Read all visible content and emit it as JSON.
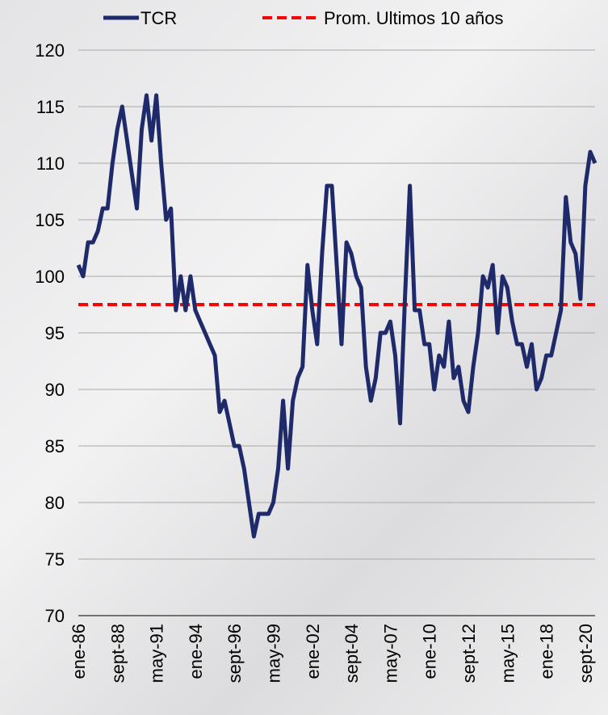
{
  "chart_data": {
    "type": "line",
    "categories": [
      "ene-86",
      null,
      null,
      null,
      null,
      null,
      null,
      null,
      "sept-88",
      null,
      null,
      null,
      null,
      null,
      null,
      null,
      "may-91",
      null,
      null,
      null,
      null,
      null,
      null,
      null,
      "ene-94",
      null,
      null,
      null,
      null,
      null,
      null,
      null,
      "sept-96",
      null,
      null,
      null,
      null,
      null,
      null,
      null,
      "may-99",
      null,
      null,
      null,
      null,
      null,
      null,
      null,
      "ene-02",
      null,
      null,
      null,
      null,
      null,
      null,
      null,
      "sept-04",
      null,
      null,
      null,
      null,
      null,
      null,
      null,
      "may-07",
      null,
      null,
      null,
      null,
      null,
      null,
      null,
      "ene-10",
      null,
      null,
      null,
      null,
      null,
      null,
      null,
      "sept-12",
      null,
      null,
      null,
      null,
      null,
      null,
      null,
      "may-15",
      null,
      null,
      null,
      null,
      null,
      null,
      null,
      "ene-18",
      null,
      null,
      null,
      null,
      null,
      null,
      null,
      "sept-20",
      null,
      null
    ],
    "series": [
      {
        "name": "TCR",
        "color": "#1f2a6b",
        "values": [
          101,
          100,
          103,
          103,
          104,
          106,
          106,
          110,
          113,
          115,
          112,
          109,
          106,
          113,
          116,
          112,
          116,
          110,
          105,
          106,
          97,
          100,
          97,
          100,
          97,
          96,
          95,
          94,
          93,
          88,
          89,
          87,
          85,
          85,
          83,
          80,
          77,
          79,
          79,
          79,
          80,
          83,
          89,
          83,
          89,
          91,
          92,
          101,
          97,
          94,
          102,
          108,
          108,
          101,
          94,
          103,
          102,
          100,
          99,
          92,
          89,
          91,
          95,
          95,
          96,
          93,
          87,
          98,
          108,
          97,
          97,
          94,
          94,
          90,
          93,
          92,
          96,
          91,
          92,
          89,
          88,
          92,
          95,
          100,
          99,
          101,
          95,
          100,
          99,
          96,
          94,
          94,
          92,
          94,
          90,
          91,
          93,
          93,
          95,
          97,
          107,
          103,
          102,
          98,
          108,
          111,
          110
        ]
      }
    ],
    "reference_line": {
      "name": "Prom. Ultimos 10 años",
      "value": 97.5,
      "color": "#ff0000",
      "dashed": true
    },
    "ylim": [
      70,
      120
    ],
    "yticks": [
      70,
      75,
      80,
      85,
      90,
      95,
      100,
      105,
      110,
      115,
      120
    ],
    "grid": true
  }
}
